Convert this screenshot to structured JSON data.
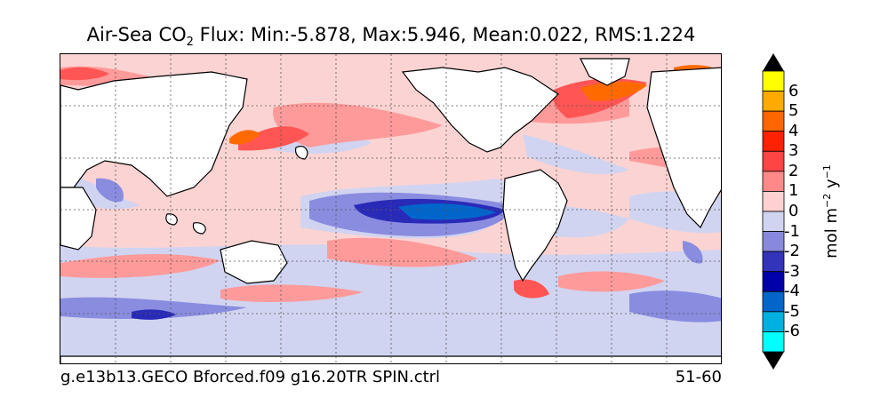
{
  "title": {
    "prefix": "Air-Sea CO",
    "subscript": "2",
    "rest": " Flux: Min:-5.878, Max:5.946, Mean:0.022, RMS:1.224"
  },
  "footer": {
    "experiment": "g.e13b13.GECO Bforced.f09 g16.20TR SPIN.ctrl",
    "years": "51-60"
  },
  "colorbar": {
    "unit_main": "mol m",
    "unit_exp1": "−2",
    "unit_mid": " y",
    "unit_exp2": "−1",
    "tick_labels": [
      "6",
      "5",
      "4",
      "3",
      "2",
      "1",
      "0",
      "-1",
      "-2",
      "-3",
      "-4",
      "-5",
      "-6"
    ],
    "colors": [
      "#ffff00",
      "#ffaa00",
      "#ff6600",
      "#ff2200",
      "#ff4444",
      "#ff8888",
      "#ffd0d0",
      "#d0d4f0",
      "#8888dd",
      "#3333bb",
      "#0000aa",
      "#0066cc",
      "#00b0e0",
      "#00ffff"
    ],
    "extend_colors": {
      "top": "#000000",
      "bottom": "#000000"
    }
  },
  "map": {
    "colors": {
      "ocean_background": "#fcd3d3",
      "land": "#ffffff",
      "coast": "#000000",
      "grid": "#555555"
    }
  }
}
